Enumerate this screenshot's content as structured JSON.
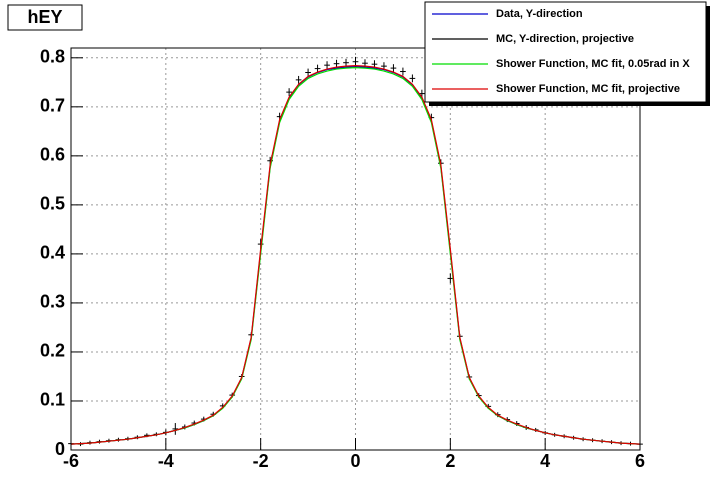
{
  "chart_data": {
    "type": "line",
    "title": "hEY",
    "legend": "top-right",
    "grid": true,
    "xlim": [
      -6,
      6
    ],
    "ylim": [
      0,
      0.82
    ],
    "xticks": [
      -6,
      -4,
      -2,
      0,
      2,
      4,
      6
    ],
    "yticks": [
      0,
      0.1,
      0.2,
      0.3,
      0.4,
      0.5,
      0.6,
      0.7,
      0.8
    ],
    "x": [
      -6.0,
      -5.8,
      -5.6,
      -5.4,
      -5.2,
      -5.0,
      -4.8,
      -4.6,
      -4.4,
      -4.2,
      -4.0,
      -3.8,
      -3.6,
      -3.4,
      -3.2,
      -3.0,
      -2.8,
      -2.6,
      -2.4,
      -2.2,
      -2.0,
      -1.8,
      -1.6,
      -1.4,
      -1.2,
      -1.0,
      -0.8,
      -0.6,
      -0.4,
      -0.2,
      0,
      0.2,
      0.4,
      0.6,
      0.8,
      1.0,
      1.2,
      1.4,
      1.6,
      1.8,
      2.0,
      2.2,
      2.4,
      2.6,
      2.8,
      3.0,
      3.2,
      3.4,
      3.6,
      3.8,
      4.0,
      4.2,
      4.4,
      4.6,
      4.8,
      5.0,
      5.2,
      5.4,
      5.6,
      5.8,
      6.0
    ],
    "series": [
      {
        "name": "Data, Y-direction",
        "color": "#0000cc",
        "style": "line",
        "values": [
          0.012,
          0.013,
          0.014,
          0.016,
          0.018,
          0.02,
          0.022,
          0.025,
          0.028,
          0.031,
          0.035,
          0.04,
          0.045,
          0.052,
          0.06,
          0.07,
          0.086,
          0.109,
          0.147,
          0.228,
          0.405,
          0.578,
          0.671,
          0.718,
          0.745,
          0.761,
          0.77,
          0.776,
          0.779,
          0.781,
          0.782,
          0.781,
          0.779,
          0.776,
          0.77,
          0.761,
          0.745,
          0.718,
          0.671,
          0.578,
          0.405,
          0.228,
          0.147,
          0.109,
          0.086,
          0.07,
          0.06,
          0.052,
          0.045,
          0.04,
          0.035,
          0.031,
          0.028,
          0.025,
          0.022,
          0.02,
          0.018,
          0.016,
          0.014,
          0.013,
          0.012
        ]
      },
      {
        "name": "MC, Y-direction, projective",
        "color": "#000000",
        "style": "errorbar",
        "values": [
          0.013,
          0.012,
          0.015,
          0.017,
          0.019,
          0.021,
          0.023,
          0.026,
          0.03,
          0.032,
          0.036,
          0.043,
          0.047,
          0.055,
          0.063,
          0.073,
          0.09,
          0.112,
          0.15,
          0.235,
          0.42,
          0.59,
          0.68,
          0.73,
          0.755,
          0.77,
          0.778,
          0.785,
          0.788,
          0.79,
          0.792,
          0.789,
          0.787,
          0.783,
          0.779,
          0.772,
          0.758,
          0.727,
          0.678,
          0.585,
          0.35,
          0.232,
          0.149,
          0.111,
          0.089,
          0.072,
          0.062,
          0.054,
          0.046,
          0.041,
          0.035,
          0.031,
          0.028,
          0.025,
          0.022,
          0.02,
          0.018,
          0.016,
          0.014,
          0.013,
          0.012
        ],
        "errors": [
          0.004,
          0.004,
          0.004,
          0.004,
          0.004,
          0.004,
          0.004,
          0.004,
          0.004,
          0.004,
          0.006,
          0.012,
          0.005,
          0.005,
          0.005,
          0.005,
          0.005,
          0.005,
          0.005,
          0.005,
          0.01,
          0.008,
          0.008,
          0.008,
          0.008,
          0.008,
          0.008,
          0.008,
          0.008,
          0.008,
          0.01,
          0.008,
          0.008,
          0.008,
          0.008,
          0.008,
          0.008,
          0.008,
          0.008,
          0.008,
          0.01,
          0.005,
          0.005,
          0.005,
          0.005,
          0.005,
          0.005,
          0.005,
          0.005,
          0.004,
          0.004,
          0.004,
          0.004,
          0.004,
          0.004,
          0.004,
          0.004,
          0.004,
          0.004,
          0.004,
          0.004
        ]
      },
      {
        "name": "Shower Function, MC fit, 0.05rad in X",
        "color": "#00dd00",
        "style": "line",
        "values": [
          0.012,
          0.013,
          0.014,
          0.016,
          0.018,
          0.02,
          0.022,
          0.025,
          0.028,
          0.031,
          0.035,
          0.04,
          0.045,
          0.052,
          0.06,
          0.07,
          0.085,
          0.108,
          0.145,
          0.225,
          0.4,
          0.575,
          0.668,
          0.715,
          0.742,
          0.758,
          0.767,
          0.773,
          0.777,
          0.779,
          0.78,
          0.779,
          0.777,
          0.773,
          0.767,
          0.758,
          0.742,
          0.715,
          0.668,
          0.575,
          0.4,
          0.225,
          0.145,
          0.108,
          0.085,
          0.07,
          0.06,
          0.052,
          0.045,
          0.04,
          0.035,
          0.031,
          0.028,
          0.025,
          0.022,
          0.02,
          0.018,
          0.016,
          0.014,
          0.013,
          0.012
        ]
      },
      {
        "name": "Shower Function, MC fit, projective",
        "color": "#dd0000",
        "style": "line",
        "values": [
          0.012,
          0.013,
          0.014,
          0.016,
          0.018,
          0.02,
          0.022,
          0.025,
          0.028,
          0.031,
          0.035,
          0.04,
          0.046,
          0.053,
          0.061,
          0.071,
          0.087,
          0.11,
          0.148,
          0.23,
          0.41,
          0.582,
          0.674,
          0.72,
          0.746,
          0.762,
          0.771,
          0.777,
          0.781,
          0.783,
          0.784,
          0.783,
          0.781,
          0.777,
          0.771,
          0.762,
          0.746,
          0.72,
          0.674,
          0.582,
          0.41,
          0.23,
          0.148,
          0.11,
          0.087,
          0.071,
          0.061,
          0.053,
          0.046,
          0.04,
          0.035,
          0.031,
          0.028,
          0.025,
          0.022,
          0.02,
          0.018,
          0.016,
          0.014,
          0.013,
          0.012
        ]
      }
    ]
  }
}
